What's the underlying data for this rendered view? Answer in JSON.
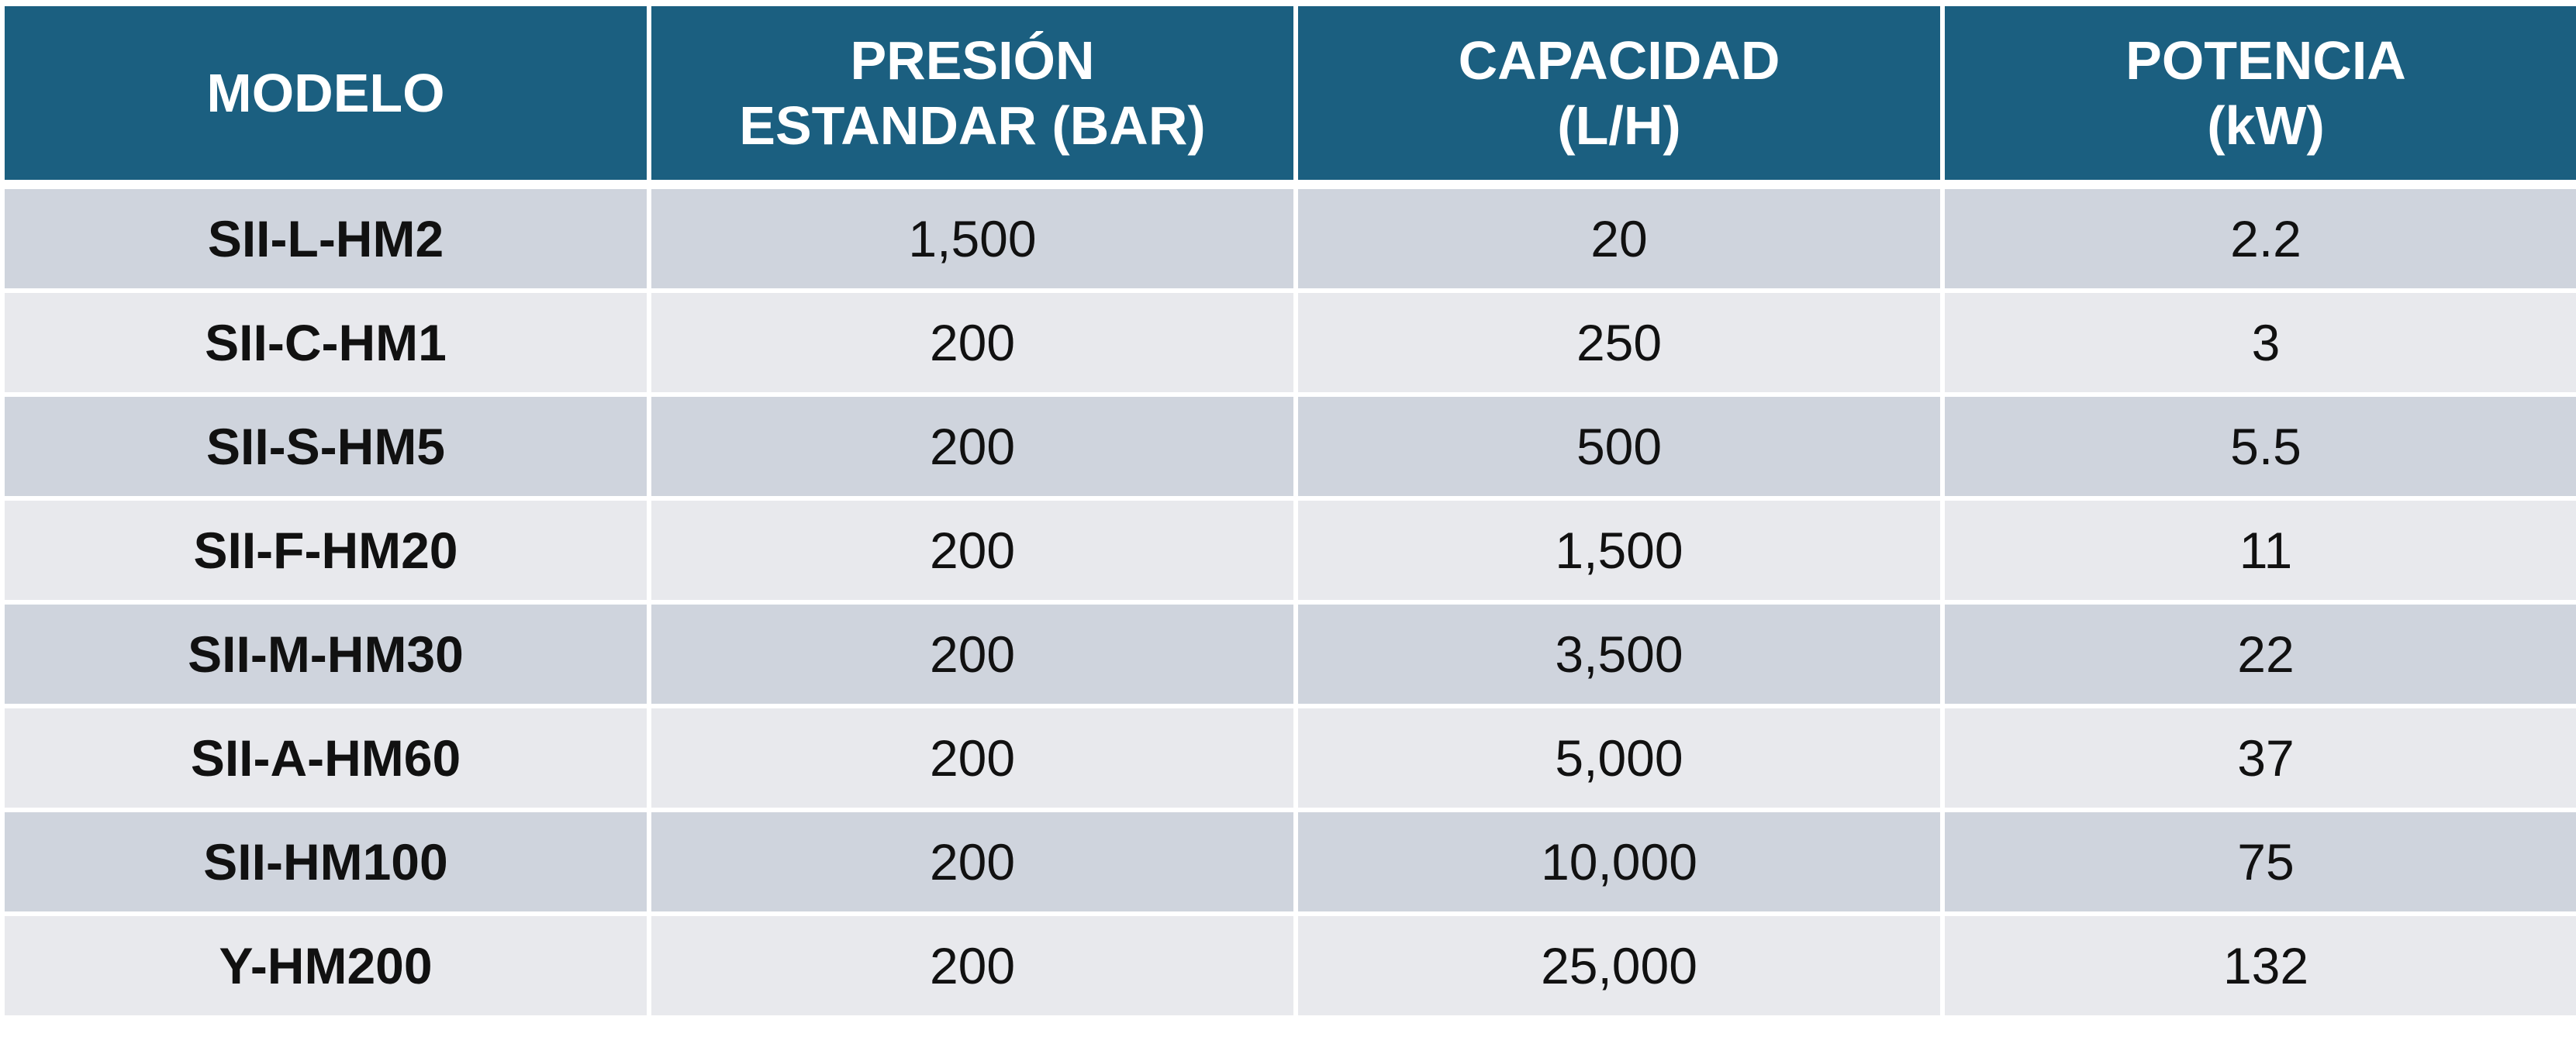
{
  "table": {
    "headers": [
      [
        "MODELO"
      ],
      [
        "PRESIÓN",
        "ESTANDAR (BAR)"
      ],
      [
        "CAPACIDAD",
        "(L/H)"
      ],
      [
        "POTENCIA",
        "(kW)"
      ]
    ],
    "rows": [
      [
        "SII-L-HM2",
        "1,500",
        "20",
        "2.2"
      ],
      [
        "SII-C-HM1",
        "200",
        "250",
        "3"
      ],
      [
        "SII-S-HM5",
        "200",
        "500",
        "5.5"
      ],
      [
        "SII-F-HM20",
        "200",
        "1,500",
        "11"
      ],
      [
        "SII-M-HM30",
        "200",
        "3,500",
        "22"
      ],
      [
        "SII-A-HM60",
        "200",
        "5,000",
        "37"
      ],
      [
        "SII-HM100",
        "200",
        "10,000",
        "75"
      ],
      [
        "Y-HM200",
        "200",
        "25,000",
        "132"
      ]
    ]
  },
  "colors": {
    "header_bg": "#1b5f80",
    "header_text": "#ffffff",
    "row_odd": "#cfd4dd",
    "row_even": "#e8e9ed"
  }
}
